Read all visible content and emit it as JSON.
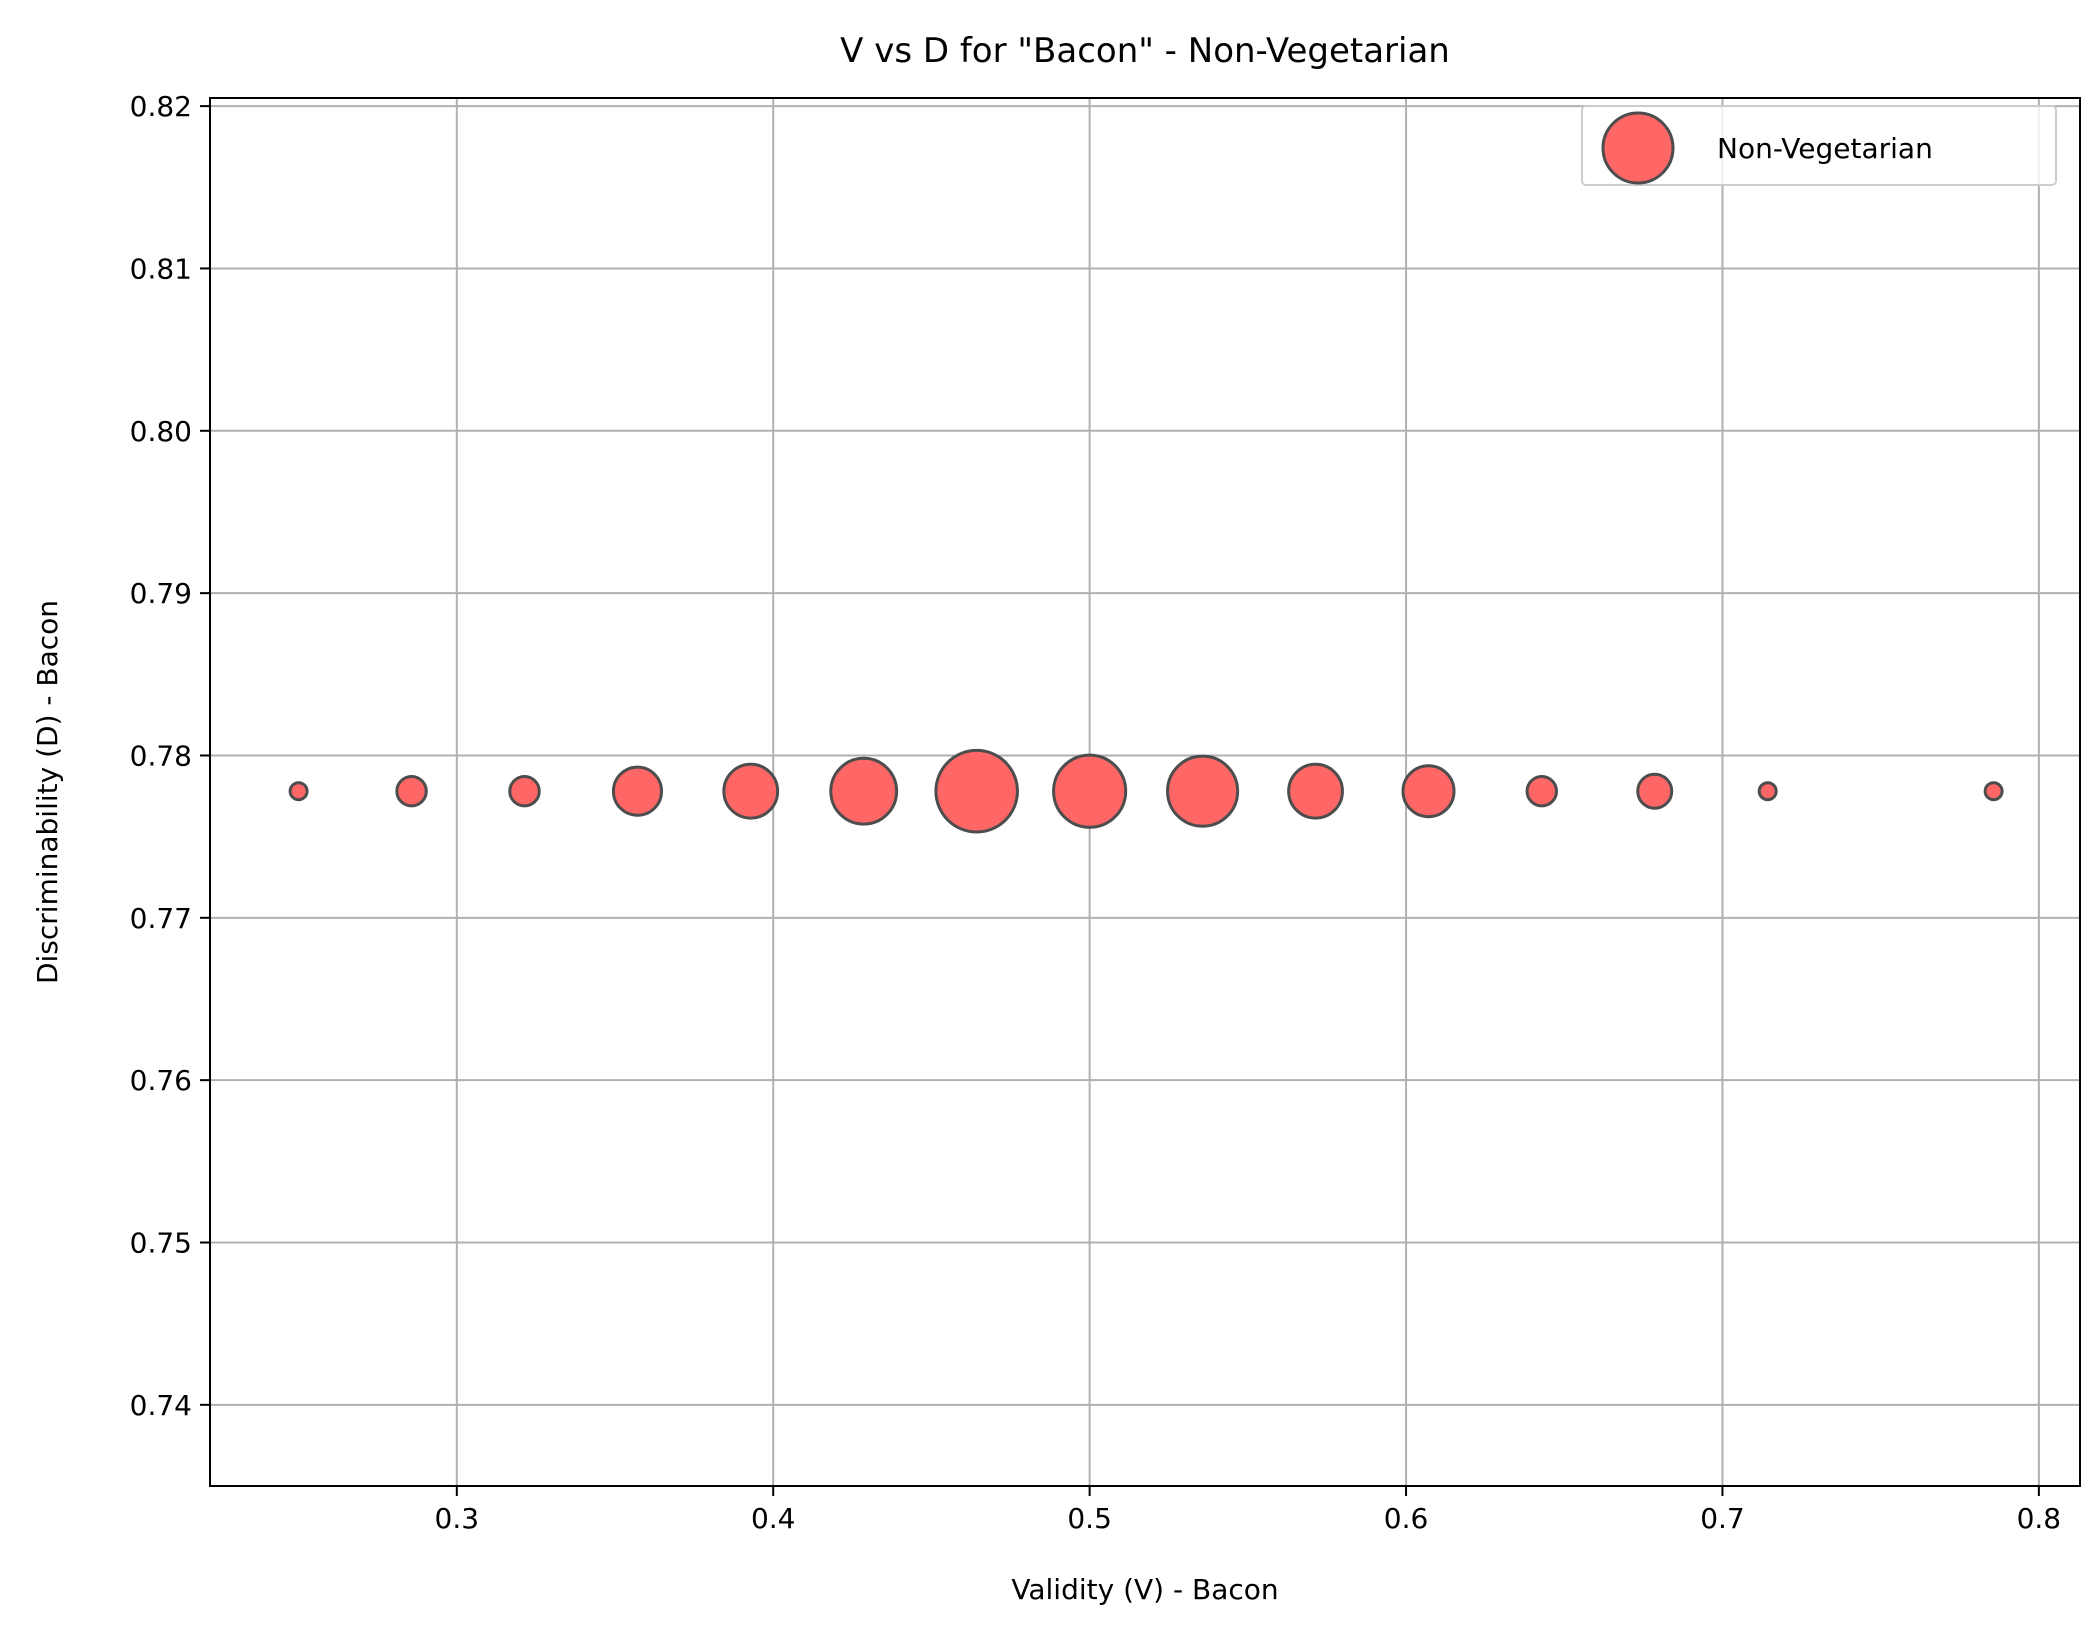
{
  "chart_data": {
    "type": "scatter",
    "title": "V vs D for \"Bacon\" - Non-Vegetarian",
    "xlabel": "Validity (V) - Bacon",
    "ylabel": "Discriminability (D) - Bacon",
    "xlim": [
      0.222,
      0.813
    ],
    "ylim": [
      0.735,
      0.8205
    ],
    "xticks": [
      0.3,
      0.4,
      0.5,
      0.6,
      0.7,
      0.8
    ],
    "xtick_labels": [
      "0.3",
      "0.4",
      "0.5",
      "0.6",
      "0.7",
      "0.8"
    ],
    "yticks": [
      0.74,
      0.75,
      0.76,
      0.77,
      0.78,
      0.79,
      0.8,
      0.81,
      0.82
    ],
    "ytick_labels": [
      "0.74",
      "0.75",
      "0.76",
      "0.77",
      "0.78",
      "0.79",
      "0.80",
      "0.81",
      "0.82"
    ],
    "grid": true,
    "legend_position": "top-right",
    "series": [
      {
        "name": "Non-Vegetarian",
        "color": "#ff6666",
        "edge_color": "#4d4d4d",
        "points": [
          {
            "x": 0.25,
            "y": 0.7778,
            "size": 1
          },
          {
            "x": 0.2857,
            "y": 0.7778,
            "size": 3
          },
          {
            "x": 0.3214,
            "y": 0.7778,
            "size": 3
          },
          {
            "x": 0.3571,
            "y": 0.7778,
            "size": 8
          },
          {
            "x": 0.3929,
            "y": 0.7778,
            "size": 10
          },
          {
            "x": 0.4286,
            "y": 0.7778,
            "size": 15
          },
          {
            "x": 0.4643,
            "y": 0.7778,
            "size": 23
          },
          {
            "x": 0.5,
            "y": 0.7778,
            "size": 18
          },
          {
            "x": 0.5357,
            "y": 0.7778,
            "size": 17
          },
          {
            "x": 0.5714,
            "y": 0.7778,
            "size": 10
          },
          {
            "x": 0.6071,
            "y": 0.7778,
            "size": 9
          },
          {
            "x": 0.6429,
            "y": 0.7778,
            "size": 3
          },
          {
            "x": 0.6786,
            "y": 0.7778,
            "size": 4
          },
          {
            "x": 0.7143,
            "y": 0.7778,
            "size": 1
          },
          {
            "x": 0.7857,
            "y": 0.7778,
            "size": 1
          }
        ]
      }
    ]
  }
}
